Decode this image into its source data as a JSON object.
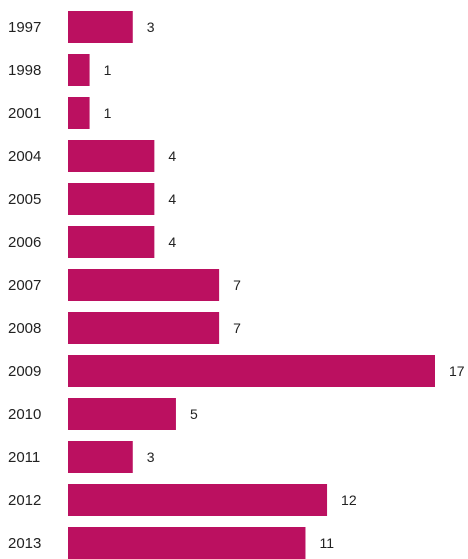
{
  "chart_data": {
    "type": "bar",
    "orientation": "horizontal",
    "title": "",
    "xlabel": "",
    "ylabel": "",
    "categories": [
      "1997",
      "1998",
      "2001",
      "2004",
      "2005",
      "2006",
      "2007",
      "2008",
      "2009",
      "2010",
      "2011",
      "2012",
      "2013"
    ],
    "values": [
      3,
      1,
      1,
      4,
      4,
      4,
      7,
      7,
      17,
      5,
      3,
      12,
      11
    ],
    "xlim": [
      0,
      17
    ],
    "grid": false,
    "legend": "none",
    "bar_color": "#bb1060",
    "data_labels": true
  }
}
